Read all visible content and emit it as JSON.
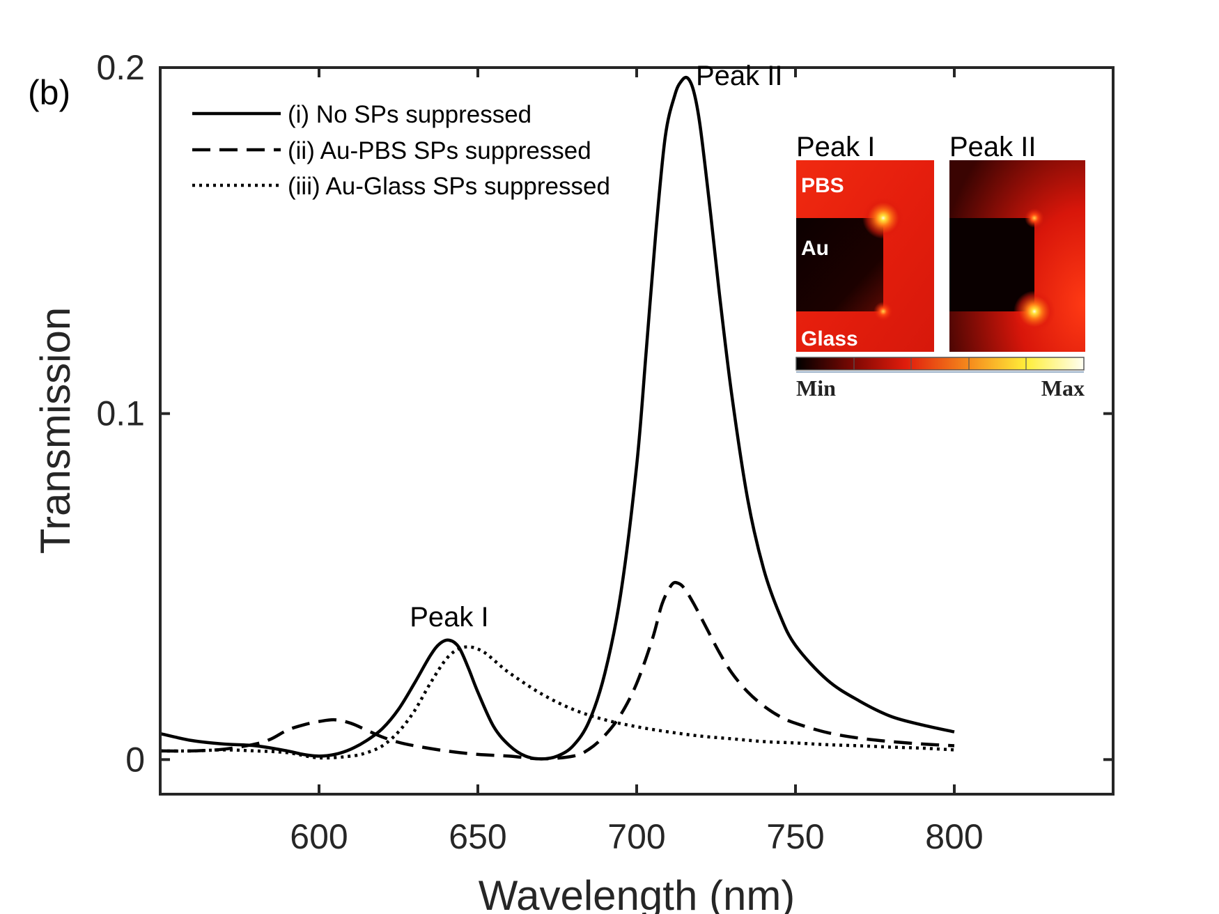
{
  "chart_data": {
    "type": "line",
    "panel_label": "(b)",
    "xlabel": "Wavelength (nm)",
    "ylabel": "Transmission",
    "xlim": [
      550,
      850
    ],
    "ylim": [
      -0.01,
      0.2
    ],
    "xticks": [
      600,
      650,
      700,
      750,
      800
    ],
    "xtick_labels": [
      "600",
      "650",
      "700",
      "750",
      "800"
    ],
    "yticks": [
      0,
      0.1,
      0.2
    ],
    "ytick_labels": [
      "0",
      "0.1",
      "0.2"
    ],
    "grid": false,
    "legend_position": "top-left",
    "series": [
      {
        "name": "(i) No SPs suppressed",
        "style": "solid",
        "x": [
          550,
          560,
          570,
          580,
          590,
          595,
          600,
          605,
          610,
          615,
          620,
          625,
          630,
          635,
          638,
          641,
          644,
          647,
          650,
          655,
          660,
          665,
          670,
          675,
          680,
          685,
          690,
          695,
          700,
          703,
          706,
          709,
          712,
          714,
          716,
          718,
          720,
          723,
          726,
          730,
          735,
          740,
          745,
          750,
          760,
          770,
          780,
          790,
          800
        ],
        "y": [
          0.0075,
          0.0055,
          0.0045,
          0.004,
          0.0025,
          0.0015,
          0.001,
          0.0015,
          0.003,
          0.0055,
          0.009,
          0.0145,
          0.022,
          0.03,
          0.0335,
          0.0345,
          0.0325,
          0.0265,
          0.0195,
          0.0095,
          0.004,
          0.001,
          0.0002,
          0.001,
          0.004,
          0.011,
          0.025,
          0.048,
          0.085,
          0.118,
          0.152,
          0.18,
          0.192,
          0.196,
          0.197,
          0.193,
          0.183,
          0.16,
          0.135,
          0.105,
          0.075,
          0.055,
          0.042,
          0.033,
          0.023,
          0.017,
          0.0125,
          0.01,
          0.008
        ]
      },
      {
        "name": "(ii) Au-PBS SPs suppressed",
        "style": "dashed",
        "x": [
          550,
          560,
          570,
          580,
          585,
          590,
          595,
          600,
          605,
          610,
          615,
          620,
          625,
          630,
          640,
          650,
          660,
          670,
          680,
          685,
          690,
          695,
          700,
          705,
          708,
          711,
          713,
          715,
          718,
          722,
          726,
          730,
          735,
          740,
          745,
          750,
          760,
          770,
          780,
          790,
          800
        ],
        "y": [
          0.0025,
          0.0025,
          0.003,
          0.0045,
          0.006,
          0.0085,
          0.01,
          0.011,
          0.0115,
          0.0105,
          0.0085,
          0.0065,
          0.005,
          0.004,
          0.0025,
          0.0015,
          0.001,
          0.0002,
          0.001,
          0.003,
          0.007,
          0.013,
          0.022,
          0.035,
          0.045,
          0.0505,
          0.051,
          0.0495,
          0.045,
          0.038,
          0.031,
          0.025,
          0.0195,
          0.0155,
          0.0125,
          0.0105,
          0.0078,
          0.0062,
          0.0052,
          0.0045,
          0.004
        ]
      },
      {
        "name": "(iii) Au-Glass SPs suppressed",
        "style": "dotted",
        "x": [
          550,
          560,
          570,
          580,
          590,
          600,
          610,
          615,
          620,
          625,
          630,
          635,
          640,
          644,
          648,
          652,
          656,
          660,
          670,
          680,
          690,
          700,
          710,
          720,
          730,
          740,
          750,
          760,
          770,
          780,
          790,
          800
        ],
        "y": [
          0.0025,
          0.0025,
          0.0028,
          0.0025,
          0.002,
          0.0005,
          0.001,
          0.002,
          0.004,
          0.008,
          0.014,
          0.022,
          0.029,
          0.032,
          0.0325,
          0.031,
          0.028,
          0.025,
          0.019,
          0.0145,
          0.0115,
          0.0095,
          0.008,
          0.0068,
          0.006,
          0.0052,
          0.0048,
          0.0043,
          0.004,
          0.0036,
          0.0033,
          0.0028
        ]
      }
    ],
    "annotations": [
      {
        "text": "Peak I",
        "x": 641,
        "y": 0.0345
      },
      {
        "text": "Peak II",
        "x": 716,
        "y": 0.197
      }
    ]
  },
  "inset": {
    "panels": [
      {
        "title": "Peak I",
        "labels": {
          "top": "PBS",
          "middle": "Au",
          "bottom": "Glass"
        }
      },
      {
        "title": "Peak II"
      }
    ],
    "colorbar": {
      "min_label": "Min",
      "max_label": "Max"
    },
    "colors": {
      "dark": "#110000",
      "mid": "#e01c0c",
      "bright": "#ffe23a",
      "white": "#fffbe8"
    }
  }
}
